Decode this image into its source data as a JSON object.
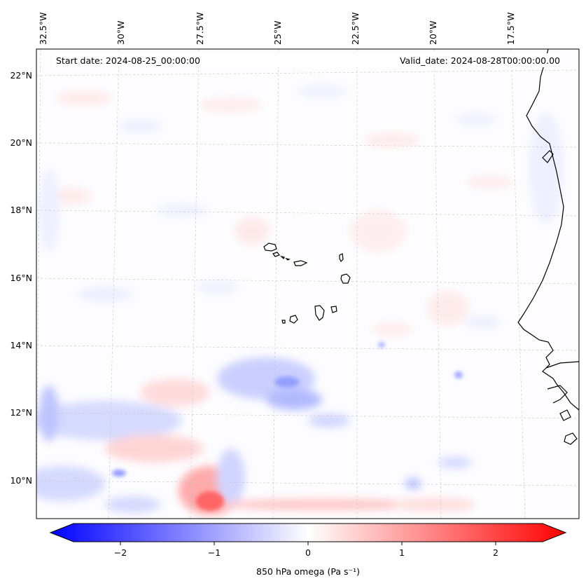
{
  "header": {
    "start_date": "Start date: 2024-08-25_00:00:00",
    "valid_date": "Valid_date: 2024-08-28T00:00:00.00"
  },
  "map": {
    "lon_labels": [
      "32.5°W",
      "30°W",
      "27.5°W",
      "25°W",
      "22.5°W",
      "20°W",
      "17.5°W"
    ],
    "lat_labels": [
      "22°N",
      "20°N",
      "18°N",
      "16°N",
      "14°N",
      "12°N",
      "10°N"
    ],
    "field": "850 hPa omega",
    "colors": {
      "negative": "#0000ff",
      "zero": "#ffffff",
      "positive": "#ff0000",
      "coast": "#000000",
      "grid": "#b8b8b8"
    }
  },
  "colorbar": {
    "label": "850 hPa omega (Pa s⁻¹)",
    "ticks": [
      "−2",
      "−1",
      "0",
      "1",
      "2"
    ],
    "min": -2.75,
    "max": 2.75,
    "extend": "both"
  }
}
